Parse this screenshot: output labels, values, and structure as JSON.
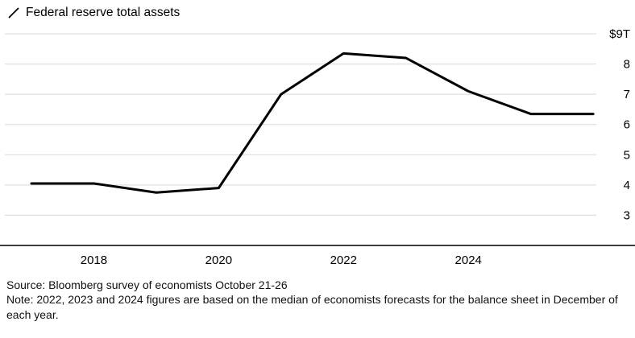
{
  "legend": {
    "label": "Federal reserve total assets",
    "icon": "line-mark-icon"
  },
  "chart_data": {
    "type": "line",
    "title": "Federal reserve total assets",
    "x": [
      2017,
      2018,
      2019,
      2020,
      2021,
      2022,
      2023,
      2024,
      2025,
      2026
    ],
    "values": [
      4.05,
      4.05,
      3.75,
      3.9,
      7.0,
      8.35,
      8.2,
      7.1,
      6.35,
      6.35
    ],
    "xlim": [
      2016.6,
      2026.05
    ],
    "ylim": [
      2,
      9
    ],
    "yticks": [
      {
        "value": 9,
        "label": "$9T"
      },
      {
        "value": 8,
        "label": "8"
      },
      {
        "value": 7,
        "label": "7"
      },
      {
        "value": 6,
        "label": "6"
      },
      {
        "value": 5,
        "label": "5"
      },
      {
        "value": 4,
        "label": "4"
      },
      {
        "value": 3,
        "label": "3"
      }
    ],
    "xticks": [
      {
        "value": 2018,
        "label": "2018"
      },
      {
        "value": 2020,
        "label": "2020"
      },
      {
        "value": 2022,
        "label": "2022"
      },
      {
        "value": 2024,
        "label": "2024"
      }
    ],
    "grid": true,
    "legend_position": "top-left",
    "line_color": "#000000",
    "grid_color": "#d8d8d8",
    "axis_color": "#3c3c3c",
    "tick_label_color": "#000000"
  },
  "footer": {
    "source": "Source: Bloomberg survey of economists October 21-26",
    "note": "Note: 2022, 2023 and 2024 figures are based on the median of economists forecasts for the balance sheet in December of each year."
  }
}
